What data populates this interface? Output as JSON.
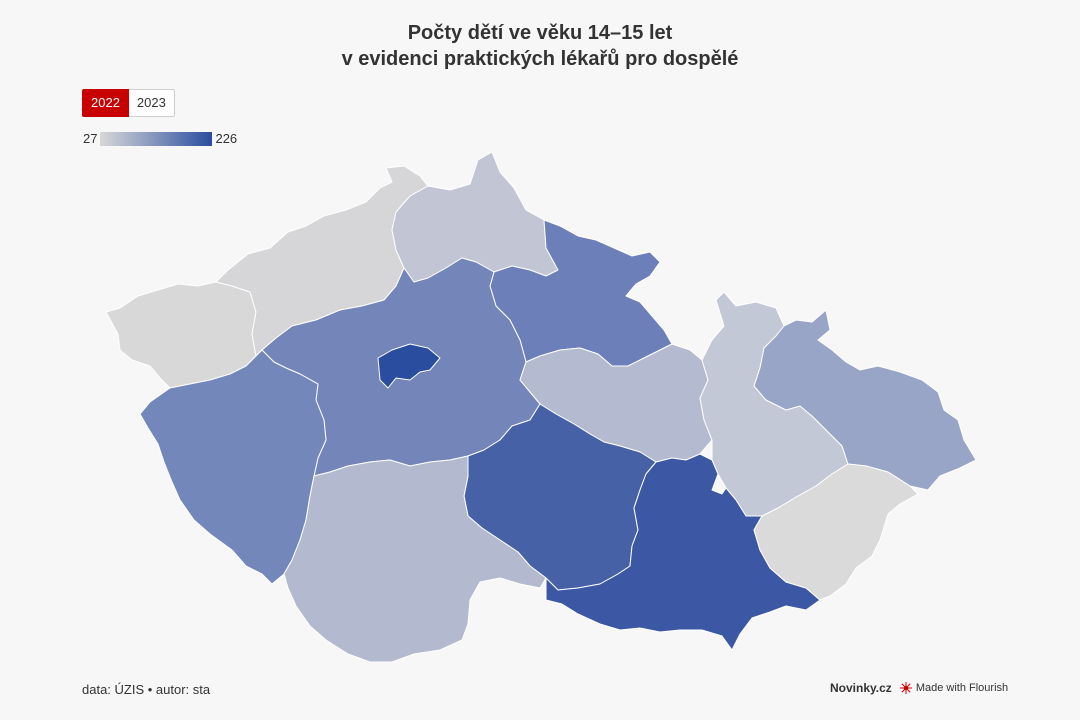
{
  "title": {
    "line1": "Počty dětí ve věku 14–15 let",
    "line2": "v evidenci praktických lékařů pro dospělé"
  },
  "tabs": [
    {
      "label": "2022",
      "active": true
    },
    {
      "label": "2023",
      "active": false
    }
  ],
  "legend": {
    "min": "27",
    "max": "226",
    "color_min": "#d8d8d8",
    "color_max": "#2a4da0"
  },
  "colors": {
    "accent": "#c80000",
    "background": "#f7f7f7"
  },
  "map": {
    "regions": [
      {
        "id": "karlovarsky",
        "value_level": 0.04,
        "fill": "#d8d8d8"
      },
      {
        "id": "ustecky",
        "value_level": 0.05,
        "fill": "#d6d6d8"
      },
      {
        "id": "liberecky",
        "value_level": 0.22,
        "fill": "#c2c6d4"
      },
      {
        "id": "kralovehradecky",
        "value_level": 0.62,
        "fill": "#6c7fb8"
      },
      {
        "id": "stredocesky",
        "value_level": 0.6,
        "fill": "#7385b9"
      },
      {
        "id": "praha",
        "value_level": 1.0,
        "fill": "#2a4da0"
      },
      {
        "id": "plzensky",
        "value_level": 0.58,
        "fill": "#7487ba"
      },
      {
        "id": "pardubicky",
        "value_level": 0.32,
        "fill": "#b4bbd0"
      },
      {
        "id": "olomoucky",
        "value_level": 0.22,
        "fill": "#c3c8d6"
      },
      {
        "id": "moravskoslezsky",
        "value_level": 0.42,
        "fill": "#98a5c6"
      },
      {
        "id": "vysocina",
        "value_level": 0.88,
        "fill": "#4661a6"
      },
      {
        "id": "jihocesky",
        "value_level": 0.32,
        "fill": "#b3bacf"
      },
      {
        "id": "jihomoravsky",
        "value_level": 0.92,
        "fill": "#3c58a4"
      },
      {
        "id": "zlinsky",
        "value_level": 0.02,
        "fill": "#dadada"
      }
    ]
  },
  "footer": {
    "source": "data: ÚZIS • autor: sta",
    "brand": "Novinky.cz",
    "made_with": "Made with Flourish"
  }
}
